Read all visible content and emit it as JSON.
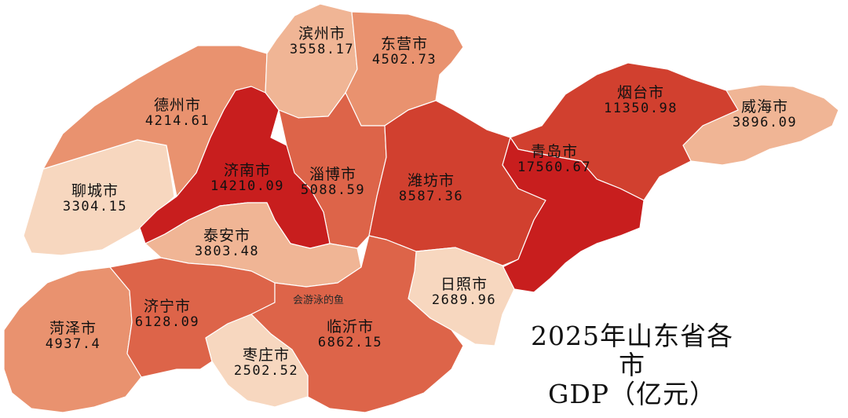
{
  "title": {
    "line1": "2025年山东省各市",
    "line2": "GDP（亿元）"
  },
  "watermark": "会游泳的鱼",
  "colors": {
    "darkest": "#c81e1e",
    "dark": "#d1402f",
    "medium": "#dd6449",
    "light": "#e9926f",
    "lighter": "#f0b595",
    "palest": "#f7d7bf",
    "border": "#ffffff"
  },
  "cities": [
    {
      "id": "binzhou",
      "name": "滨州市",
      "gdp": "3558.17",
      "tone": "lighter"
    },
    {
      "id": "dongying",
      "name": "东营市",
      "gdp": "4502.73",
      "tone": "light"
    },
    {
      "id": "dezhou",
      "name": "德州市",
      "gdp": "4214.61",
      "tone": "light"
    },
    {
      "id": "yantai",
      "name": "烟台市",
      "gdp": "11350.98",
      "tone": "dark"
    },
    {
      "id": "weihai",
      "name": "威海市",
      "gdp": "3896.09",
      "tone": "lighter"
    },
    {
      "id": "liaocheng",
      "name": "聊城市",
      "gdp": "3304.15",
      "tone": "palest"
    },
    {
      "id": "jinan",
      "name": "济南市",
      "gdp": "14210.09",
      "tone": "darkest"
    },
    {
      "id": "zibo",
      "name": "淄博市",
      "gdp": "5088.59",
      "tone": "medium"
    },
    {
      "id": "weifang",
      "name": "潍坊市",
      "gdp": "8587.36",
      "tone": "dark"
    },
    {
      "id": "qingdao",
      "name": "青岛市",
      "gdp": "17560.67",
      "tone": "darkest"
    },
    {
      "id": "taian",
      "name": "泰安市",
      "gdp": "3803.48",
      "tone": "lighter"
    },
    {
      "id": "rizhao",
      "name": "日照市",
      "gdp": "2689.96",
      "tone": "palest"
    },
    {
      "id": "heze",
      "name": "菏泽市",
      "gdp": "4937.4",
      "tone": "light"
    },
    {
      "id": "jining",
      "name": "济宁市",
      "gdp": "6128.09",
      "tone": "medium"
    },
    {
      "id": "linyi",
      "name": "临沂市",
      "gdp": "6862.15",
      "tone": "medium"
    },
    {
      "id": "zaozhuang",
      "name": "枣庄市",
      "gdp": "2502.52",
      "tone": "palest"
    }
  ]
}
